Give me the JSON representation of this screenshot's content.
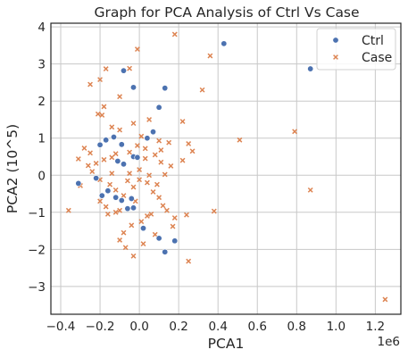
{
  "chart_data": {
    "type": "scatter",
    "title": "Graph for PCA Analysis of Ctrl Vs Case",
    "xlabel": "PCA1",
    "ylabel": "PCA2 (10^5)",
    "x_offset_label": "1e6",
    "xlim": [
      -0.45,
      1.33
    ],
    "ylim": [
      -3.75,
      4.1
    ],
    "xticks": [
      -0.4,
      -0.2,
      0.0,
      0.2,
      0.4,
      0.6,
      0.8,
      1.0,
      1.2
    ],
    "xtick_labels": [
      "−0.4",
      "−0.2",
      "0.0",
      "0.2",
      "0.4",
      "0.6",
      "0.8",
      "1.0",
      "1.2"
    ],
    "yticks": [
      -3,
      -2,
      -1,
      0,
      1,
      2,
      3,
      4
    ],
    "ytick_labels": [
      "−3",
      "−2",
      "−1",
      "0",
      "1",
      "2",
      "3",
      "4"
    ],
    "grid": true,
    "legend_position": "top-right",
    "series": [
      {
        "name": "Ctrl",
        "marker": "circle",
        "color": "#4c72b0",
        "points": [
          [
            -0.08,
            2.82
          ],
          [
            0.43,
            3.55
          ],
          [
            0.87,
            2.87
          ],
          [
            -0.03,
            2.37
          ],
          [
            0.13,
            2.35
          ],
          [
            0.1,
            1.83
          ],
          [
            0.07,
            1.17
          ],
          [
            0.04,
            1.0
          ],
          [
            -0.17,
            0.95
          ],
          [
            -0.13,
            1.03
          ],
          [
            -0.2,
            0.82
          ],
          [
            -0.09,
            0.83
          ],
          [
            -0.03,
            0.5
          ],
          [
            -0.11,
            0.38
          ],
          [
            -0.08,
            0.3
          ],
          [
            -0.01,
            0.48
          ],
          [
            -0.22,
            -0.08
          ],
          [
            -0.31,
            -0.22
          ],
          [
            -0.16,
            -0.42
          ],
          [
            -0.04,
            -0.63
          ],
          [
            -0.03,
            -0.88
          ],
          [
            -0.06,
            -0.9
          ],
          [
            -0.12,
            -0.6
          ],
          [
            -0.09,
            -0.68
          ],
          [
            0.02,
            -1.43
          ],
          [
            0.1,
            -1.7
          ],
          [
            0.18,
            -1.77
          ],
          [
            0.13,
            -2.07
          ],
          [
            -0.19,
            -0.55
          ]
        ]
      },
      {
        "name": "Case",
        "marker": "x",
        "color": "#dd8452",
        "points": [
          [
            0.18,
            3.8
          ],
          [
            -0.01,
            3.4
          ],
          [
            0.36,
            3.22
          ],
          [
            -0.05,
            2.88
          ],
          [
            -0.17,
            2.87
          ],
          [
            -0.2,
            2.58
          ],
          [
            -0.25,
            2.45
          ],
          [
            0.32,
            2.3
          ],
          [
            -0.1,
            2.12
          ],
          [
            -0.18,
            1.85
          ],
          [
            -0.21,
            1.65
          ],
          [
            -0.19,
            1.62
          ],
          [
            0.05,
            1.5
          ],
          [
            -0.03,
            1.4
          ],
          [
            0.22,
            1.45
          ],
          [
            -0.14,
            1.3
          ],
          [
            -0.1,
            1.22
          ],
          [
            0.01,
            1.05
          ],
          [
            0.1,
            0.93
          ],
          [
            0.15,
            0.88
          ],
          [
            -0.28,
            0.73
          ],
          [
            -0.25,
            0.6
          ],
          [
            -0.22,
            0.32
          ],
          [
            -0.18,
            0.42
          ],
          [
            -0.14,
            0.48
          ],
          [
            -0.12,
            0.58
          ],
          [
            -0.05,
            0.62
          ],
          [
            -0.01,
            0.8
          ],
          [
            0.03,
            0.45
          ],
          [
            0.08,
            0.55
          ],
          [
            0.11,
            0.68
          ],
          [
            0.16,
            0.25
          ],
          [
            0.22,
            0.4
          ],
          [
            0.25,
            0.85
          ],
          [
            0.27,
            0.65
          ],
          [
            0.51,
            0.95
          ],
          [
            0.79,
            1.18
          ],
          [
            0.87,
            -0.4
          ],
          [
            1.25,
            -3.35
          ],
          [
            0.38,
            -0.97
          ],
          [
            0.24,
            -1.07
          ],
          [
            0.25,
            -2.32
          ],
          [
            0.17,
            -1.38
          ],
          [
            -0.36,
            -0.95
          ],
          [
            -0.31,
            0.44
          ],
          [
            -0.26,
            0.26
          ],
          [
            -0.24,
            0.1
          ],
          [
            -0.2,
            -0.12
          ],
          [
            -0.15,
            -0.25
          ],
          [
            -0.12,
            -0.4
          ],
          [
            -0.08,
            -0.55
          ],
          [
            -0.03,
            -0.32
          ],
          [
            0.0,
            -0.12
          ],
          [
            0.04,
            -0.2
          ],
          [
            0.07,
            -0.45
          ],
          [
            0.1,
            -0.6
          ],
          [
            0.12,
            -0.82
          ],
          [
            0.14,
            -0.95
          ],
          [
            0.06,
            -1.05
          ],
          [
            0.01,
            -1.25
          ],
          [
            -0.04,
            -1.35
          ],
          [
            -0.08,
            -1.55
          ],
          [
            -0.1,
            -1.75
          ],
          [
            -0.07,
            -1.95
          ],
          [
            -0.03,
            -2.18
          ],
          [
            0.02,
            -1.85
          ],
          [
            0.04,
            -1.1
          ],
          [
            -0.02,
            -0.7
          ],
          [
            0.0,
            0.15
          ],
          [
            -0.14,
            0.05
          ],
          [
            -0.1,
            -0.95
          ],
          [
            -0.16,
            -1.05
          ],
          [
            0.05,
            0.0
          ],
          [
            0.09,
            -0.25
          ],
          [
            0.13,
            0.02
          ],
          [
            -0.05,
            0.05
          ],
          [
            -0.2,
            -0.7
          ],
          [
            0.18,
            -1.15
          ],
          [
            0.08,
            -1.6
          ],
          [
            -0.3,
            -0.28
          ],
          [
            -0.12,
            -1.0
          ],
          [
            0.03,
            0.72
          ],
          [
            -0.06,
            -0.15
          ],
          [
            0.11,
            0.35
          ],
          [
            -0.17,
            -0.85
          ]
        ]
      }
    ]
  }
}
